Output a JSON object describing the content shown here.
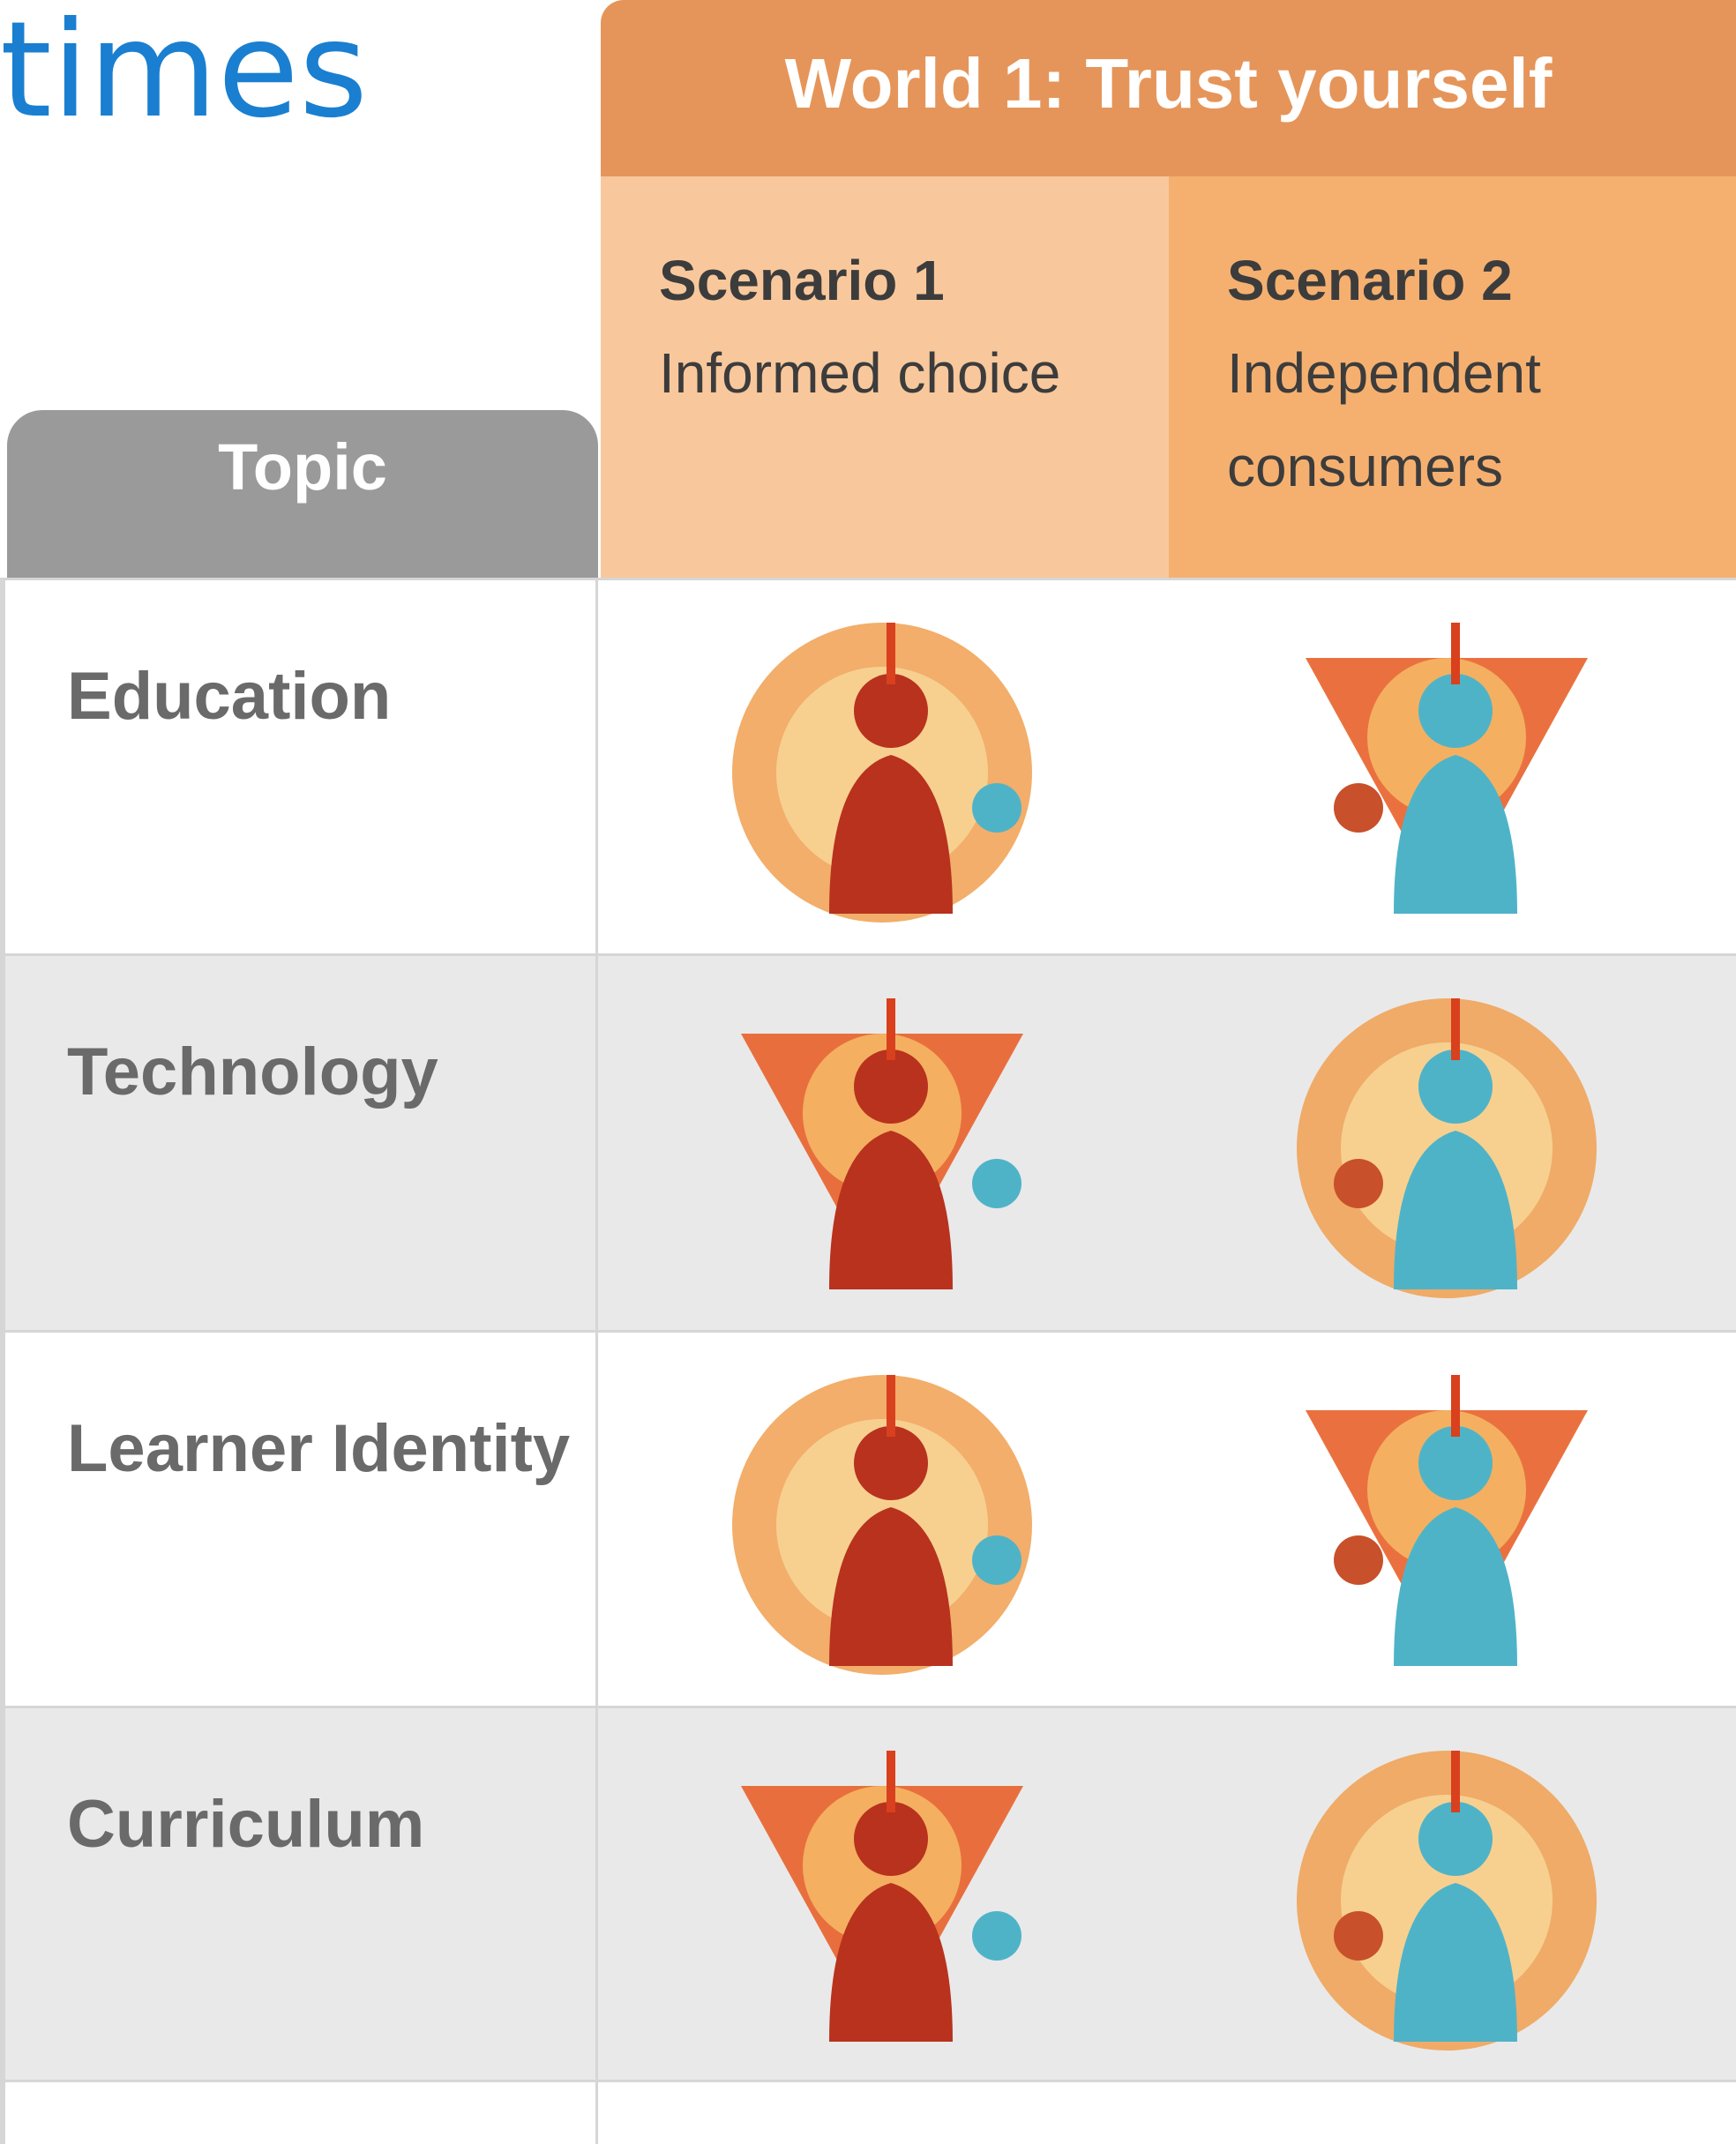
{
  "title": "times",
  "header": {
    "world": "World 1: Trust yourself",
    "topic": "Topic",
    "scenarios": [
      {
        "name": "Scenario 1",
        "description": "Informed choice"
      },
      {
        "name": "Scenario 2",
        "description": "Independent consumers"
      }
    ]
  },
  "rows": [
    "Education",
    "Technology",
    "Learner Identity",
    "Curriculum"
  ]
}
